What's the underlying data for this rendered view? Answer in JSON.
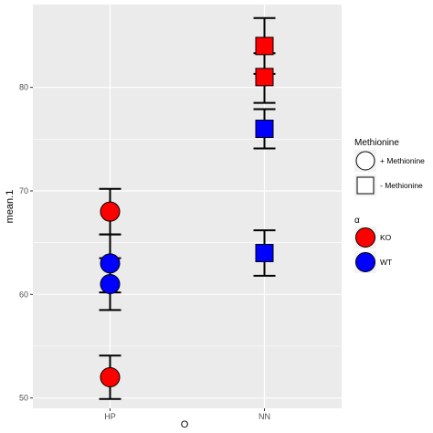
{
  "chart_data": {
    "type": "scatter",
    "xlabel": "O",
    "ylabel": "mean.1",
    "categories": [
      "HP",
      "NN"
    ],
    "ylim": [
      49,
      88
    ],
    "yticks": [
      50,
      60,
      70,
      80
    ],
    "grid": true,
    "legend_position": "right",
    "points": [
      {
        "x": "HP",
        "y": 68,
        "ymin": 65.8,
        "ymax": 70.2,
        "shape": "+ Methionine",
        "color": "KO"
      },
      {
        "x": "HP",
        "y": 63,
        "ymin": 60.2,
        "ymax": 65.8,
        "shape": "+ Methionine",
        "color": "WT"
      },
      {
        "x": "HP",
        "y": 61,
        "ymin": 58.5,
        "ymax": 63.5,
        "shape": "+ Methionine",
        "color": "WT"
      },
      {
        "x": "HP",
        "y": 52,
        "ymin": 49.9,
        "ymax": 54.1,
        "shape": "+ Methionine",
        "color": "KO"
      },
      {
        "x": "NN",
        "y": 84,
        "ymin": 81.3,
        "ymax": 86.7,
        "shape": "- Methionine",
        "color": "KO"
      },
      {
        "x": "NN",
        "y": 81,
        "ymin": 78.5,
        "ymax": 83.3,
        "shape": "- Methionine",
        "color": "KO"
      },
      {
        "x": "NN",
        "y": 76,
        "ymin": 74.1,
        "ymax": 77.9,
        "shape": "- Methionine",
        "color": "WT"
      },
      {
        "x": "NN",
        "y": 64,
        "ymin": 61.8,
        "ymax": 66.2,
        "shape": "- Methionine",
        "color": "WT"
      }
    ],
    "legends": [
      {
        "title": "Methionine",
        "kind": "shape",
        "entries": [
          {
            "label": "+ Methionine",
            "shape": "circle"
          },
          {
            "label": "- Methionine",
            "shape": "square"
          }
        ]
      },
      {
        "title": "α",
        "kind": "color",
        "entries": [
          {
            "label": "KO",
            "color": "#ff0000"
          },
          {
            "label": "WT",
            "color": "#0000ff"
          }
        ]
      }
    ],
    "colors": {
      "KO": "#ff0000",
      "WT": "#0000ff",
      "panel": "#ebebeb",
      "grid": "#ffffff"
    }
  }
}
